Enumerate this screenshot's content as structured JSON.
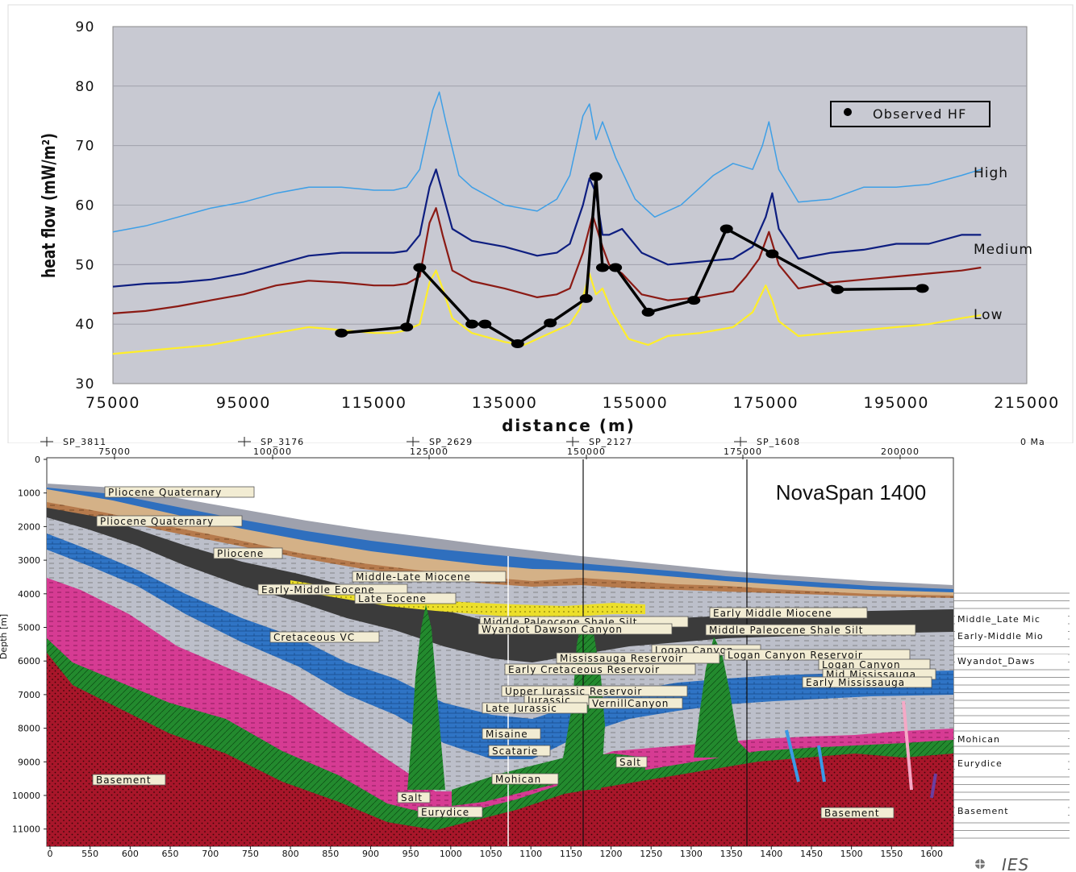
{
  "chart_data": [
    {
      "type": "line",
      "title": "",
      "xlabel": "distance (m)",
      "ylabel": "heat flow (mW/m²)",
      "xlim": [
        75000,
        215000
      ],
      "ylim": [
        30,
        90
      ],
      "xticks": [
        "75000",
        "95000",
        "115000",
        "135000",
        "155000",
        "175000",
        "195000",
        "215000"
      ],
      "yticks": [
        "30",
        "40",
        "50",
        "60",
        "70",
        "80",
        "90"
      ],
      "grid": true,
      "legend": {
        "position": "top-right",
        "entries": [
          "Observed HF"
        ]
      },
      "series": [
        {
          "name": "High",
          "color": "#3e9fe6",
          "x": [
            75000,
            80000,
            85000,
            90000,
            95000,
            100000,
            105000,
            110000,
            115000,
            118000,
            120000,
            122000,
            124000,
            125000,
            126000,
            128000,
            130000,
            135000,
            140000,
            143000,
            145000,
            147000,
            148000,
            149000,
            150000,
            152000,
            155000,
            158000,
            162000,
            167000,
            170000,
            173000,
            174500,
            175500,
            177000,
            180000,
            185000,
            190000,
            195000,
            200000,
            205000,
            208000
          ],
          "y": [
            55.5,
            56.5,
            58,
            59.5,
            60.5,
            62,
            63,
            63,
            62.5,
            62.5,
            63,
            66,
            76,
            79,
            74,
            65,
            63,
            60,
            59,
            61,
            65,
            75,
            77,
            71,
            74,
            68,
            61,
            58,
            60,
            65,
            67,
            66,
            70,
            74,
            66,
            60.5,
            61,
            63,
            63,
            63.5,
            65,
            66
          ]
        },
        {
          "name": "Medium",
          "color": "#0e1e80",
          "x": [
            75000,
            80000,
            85000,
            90000,
            95000,
            100000,
            105000,
            110000,
            115000,
            118000,
            120000,
            122000,
            123500,
            124500,
            125500,
            127000,
            130000,
            135000,
            140000,
            143000,
            145000,
            147000,
            148000,
            149000,
            150000,
            151000,
            153000,
            156000,
            160000,
            165000,
            170000,
            173000,
            175000,
            176000,
            177000,
            180000,
            185000,
            190000,
            195000,
            200000,
            205000,
            208000
          ],
          "y": [
            46.3,
            46.8,
            47,
            47.5,
            48.5,
            50,
            51.5,
            52,
            52,
            52,
            52.3,
            55,
            63,
            66,
            62,
            56,
            54,
            53,
            51.5,
            52,
            53.5,
            60,
            64.5,
            62,
            55,
            55,
            56,
            52,
            50,
            50.5,
            51,
            53,
            58,
            62,
            56,
            51,
            52,
            52.5,
            53.5,
            53.5,
            55,
            55
          ]
        },
        {
          "name": "",
          "color": "#8b1a14",
          "x": [
            75000,
            80000,
            85000,
            90000,
            95000,
            100000,
            105000,
            110000,
            115000,
            118000,
            120000,
            122000,
            123500,
            124500,
            125500,
            127000,
            130000,
            135000,
            140000,
            143000,
            145000,
            147000,
            148500,
            150000,
            151000,
            153000,
            156000,
            160000,
            165000,
            170000,
            172000,
            174000,
            175500,
            177000,
            180000,
            185000,
            190000,
            195000,
            200000,
            205000,
            208000
          ],
          "y": [
            41.8,
            42.2,
            43,
            44,
            45,
            46.5,
            47.3,
            47,
            46.5,
            46.5,
            46.8,
            48,
            57,
            59.5,
            55,
            49,
            47.2,
            46,
            44.5,
            45,
            46,
            52,
            58.3,
            53,
            50,
            48.5,
            45,
            44,
            44.5,
            45.5,
            48,
            51,
            55.5,
            50,
            46,
            47,
            47.5,
            48,
            48.5,
            49,
            49.5
          ]
        },
        {
          "name": "Low",
          "color": "#ffee2a",
          "x": [
            75000,
            80000,
            85000,
            90000,
            95000,
            100000,
            105000,
            110000,
            115000,
            118000,
            120000,
            122000,
            123500,
            124500,
            125500,
            127000,
            130000,
            135000,
            138000,
            140000,
            143000,
            145000,
            146500,
            148000,
            149000,
            150000,
            151500,
            154000,
            157000,
            160000,
            165000,
            170000,
            173000,
            175000,
            176000,
            177000,
            180000,
            185000,
            190000,
            195000,
            200000,
            205000,
            208000
          ],
          "y": [
            35,
            35.5,
            36,
            36.5,
            37.5,
            38.5,
            39.5,
            39,
            38.5,
            38.5,
            39,
            40,
            47,
            49,
            46,
            41,
            38.5,
            37,
            36.5,
            37.5,
            39,
            40,
            42.5,
            48.5,
            45,
            46,
            42,
            37.5,
            36.5,
            38,
            38.5,
            39.5,
            42,
            46.5,
            44,
            40.5,
            38,
            38.5,
            39,
            39.5,
            40,
            41,
            41.5
          ]
        },
        {
          "name": "Observed HF",
          "color": "#000000",
          "markers": true,
          "x": [
            110000,
            120000,
            122000,
            130000,
            132000,
            137000,
            142000,
            147500,
            149000,
            150000,
            152000,
            157000,
            164000,
            169000,
            176000,
            186000,
            199000
          ],
          "y": [
            38.5,
            39.5,
            49.5,
            40,
            40,
            36.7,
            40.2,
            44.3,
            64.8,
            49.5,
            49.5,
            42,
            44,
            56,
            51.8,
            45.8,
            46
          ]
        }
      ],
      "annotations": [
        "High",
        "Medium",
        "Low"
      ]
    },
    {
      "type": "other",
      "title": "NovaSpan 1400",
      "xaxis_top": {
        "ticks": [
          "75000",
          "100000",
          "125000",
          "150000",
          "175000",
          "200000"
        ],
        "shotpoints": [
          "SP_3811",
          "SP_3176",
          "SP_2629",
          "SP_2127",
          "SP_1608"
        ],
        "age_label": "0 Ma"
      },
      "xaxis_bottom": {
        "ticks": [
          "0",
          "550",
          "600",
          "650",
          "700",
          "750",
          "800",
          "850",
          "900",
          "950",
          "1000",
          "1050",
          "1100",
          "1150",
          "1200",
          "1250",
          "1300",
          "1350",
          "1400",
          "1450",
          "1500",
          "1550",
          "1600"
        ]
      },
      "yaxis": {
        "label": "Depth [m]",
        "ticks": [
          "0",
          "1000",
          "2000",
          "3000",
          "4000",
          "5000",
          "6000",
          "7000",
          "8000",
          "9000",
          "10000",
          "11000"
        ]
      },
      "layer_labels": [
        "Pliocene Quaternary",
        "Pliocene Quaternary",
        "Pliocene",
        "Middle-Late Miocene",
        "Early-Middle Eocene",
        "Late Eocene",
        "Cretaceous VC",
        "Middle Paleocene Shale Silt",
        "Wyandot Dawson Canyon",
        "Early Middle Miocene",
        "Middle Paleocene Shale Silt",
        "Logan Canyon",
        "Mississauga Reservoir",
        "Logan Canyon Reservoir",
        "Logan Canyon",
        "Early Cretaceous Reservoir",
        "Mid Mississauga",
        "Early Mississauga",
        "Upper Jurassic Reservoir",
        "Jurassic",
        "VernillCanyon",
        "Late Jurassic",
        "Misaine",
        "Scatarie",
        "Salt",
        "Mohican",
        "Salt",
        "Eurydice",
        "Basement",
        "Basement"
      ],
      "legend_right": [
        "Middle_Late Mic",
        "Early-Middle Mio",
        "Wyandot_Daws",
        "Mohican",
        "Eurydice",
        "Basement"
      ],
      "logo": "IES"
    }
  ],
  "colors": {
    "plot_bg": "#c8c9d2",
    "basement": "#a8162a",
    "salt": "#228b2c",
    "pink": "#d83a92",
    "blue": "#2f74c5",
    "grey": "#b9bcc8",
    "dark": "#3a3a3a",
    "yellow": "#e6dc28",
    "brown": "#b7794a",
    "tan": "#d7b48b"
  }
}
